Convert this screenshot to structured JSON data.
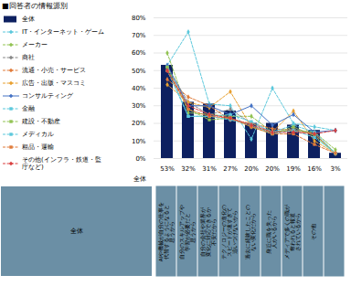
{
  "chart_data": {
    "type": "bar",
    "title": "■回答者の情報源別",
    "categories": [
      "53%",
      "32%",
      "31%",
      "27%",
      "20%",
      "20%",
      "19%",
      "16%",
      "3%"
    ],
    "xlabel": "全体",
    "ylim": [
      0,
      80
    ],
    "yticks": [
      {
        "value": 0,
        "label": "0%"
      },
      {
        "value": 10,
        "label": "10%"
      },
      {
        "value": 20,
        "label": "20%"
      },
      {
        "value": 30,
        "label": "30%"
      },
      {
        "value": 40,
        "label": "40%"
      },
      {
        "value": 50,
        "label": "50%"
      },
      {
        "value": 60,
        "label": "60%"
      },
      {
        "value": 70,
        "label": "70%"
      },
      {
        "value": 80,
        "label": "80%"
      }
    ],
    "grid": true,
    "legend": "left",
    "series": [
      {
        "name": "全体",
        "type": "bar",
        "color": "#0d2060",
        "values": [
          53,
          32,
          31,
          27,
          20,
          20,
          19,
          16,
          3
        ]
      },
      {
        "name": "IT・インターネット・ゲーム",
        "type": "line",
        "color": "#5bc8dc",
        "line_style": "dashed",
        "marker": "diamond",
        "values": [
          53,
          72,
          31,
          30,
          11,
          40,
          20,
          18,
          16
        ]
      },
      {
        "name": "メーカー",
        "type": "line",
        "color": "#92c353",
        "line_style": "dashed",
        "marker": "diamond",
        "values": [
          60,
          26,
          25,
          24,
          24,
          15,
          16,
          15,
          5
        ]
      },
      {
        "name": "商社",
        "type": "line",
        "color": "#888888",
        "line_style": "dashed",
        "marker": "diamond",
        "values": [
          52,
          32,
          25,
          28,
          20,
          15,
          17,
          14,
          3
        ]
      },
      {
        "name": "流通・小売・サービス",
        "type": "line",
        "color": "#e07b3a",
        "line_style": "dashed",
        "marker": "diamond",
        "values": [
          45,
          35,
          30,
          22,
          20,
          17,
          16,
          14,
          3
        ]
      },
      {
        "name": "広告・出版・マスコミ",
        "type": "line",
        "color": "#e8a030",
        "line_style": "dashed",
        "marker": "diamond",
        "values": [
          42,
          32,
          29,
          38,
          18,
          15,
          27,
          10,
          3
        ]
      },
      {
        "name": "コンサルティング",
        "type": "line",
        "color": "#4472c4",
        "line_style": "solid",
        "marker": "diamond",
        "values": [
          53,
          30,
          30,
          25,
          30,
          19,
          25,
          15,
          16
        ]
      },
      {
        "name": "金融",
        "type": "line",
        "color": "#5bc8dc",
        "line_style": "dashed",
        "marker": "square",
        "values": [
          52,
          24,
          24,
          25,
          21,
          15,
          19,
          15,
          3
        ]
      },
      {
        "name": "建設・不動産",
        "type": "line",
        "color": "#92c353",
        "line_style": "dashed",
        "marker": "square",
        "values": [
          52,
          28,
          22,
          23,
          18,
          14,
          18,
          13,
          3
        ]
      },
      {
        "name": "メディカル",
        "type": "line",
        "color": "#5bc8dc",
        "line_style": "dashed",
        "marker": "square",
        "values": [
          50,
          24,
          24,
          22,
          19,
          14,
          16,
          12,
          3
        ]
      },
      {
        "name": "粗品・運輸",
        "type": "line",
        "color": "#e07b3a",
        "line_style": "dashed",
        "marker": "square",
        "values": [
          50,
          28,
          24,
          23,
          18,
          14,
          14,
          8,
          3
        ]
      },
      {
        "name": "その他(インフラ・鉄道・監\n庁など)",
        "type": "line",
        "color": "#d94040",
        "line_style": "dashed",
        "marker": "diamond",
        "values": [
          50,
          30,
          25,
          23,
          19,
          15,
          15,
          14,
          16
        ]
      }
    ],
    "table_labels": [
      "全体",
      "AIや機械が自分の仕事を\n代替するようになると\n思うから",
      "自分のスキルアップや\n学習が必要だと\n思うから",
      "自分の会社や業界が\n変化に対応できるか\n不安だから",
      "テクノロジーの進化の\nスピードが速すぎて\n追いつけないから",
      "過去に経験したことの\nない変化だから",
      "身近に職を失った\n人がいるから",
      "メディアで多くの職が\n奪われると報道\nされているから",
      "その他"
    ],
    "table_color": "#6b8fa5"
  }
}
